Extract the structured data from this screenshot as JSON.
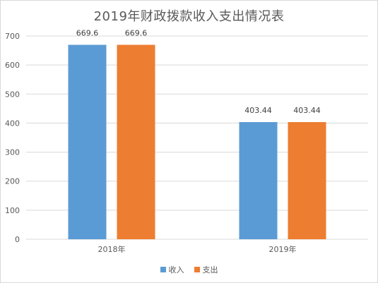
{
  "chart_data": {
    "type": "bar",
    "title": "2019年财政拨款收入支出情况表",
    "categories": [
      "2018年",
      "2019年"
    ],
    "series": [
      {
        "name": "收入",
        "values": [
          669.6,
          403.44
        ],
        "color": "#5b9bd5"
      },
      {
        "name": "支出",
        "values": [
          669.6,
          403.44
        ],
        "color": "#ed7d31"
      }
    ],
    "data_labels": [
      [
        "669.6",
        "403.44"
      ],
      [
        "669.6",
        "403.44"
      ]
    ],
    "ylim": [
      0,
      700
    ],
    "yticks": [
      0,
      100,
      200,
      300,
      400,
      500,
      600,
      700
    ],
    "grid": true,
    "legend_position": "bottom"
  }
}
